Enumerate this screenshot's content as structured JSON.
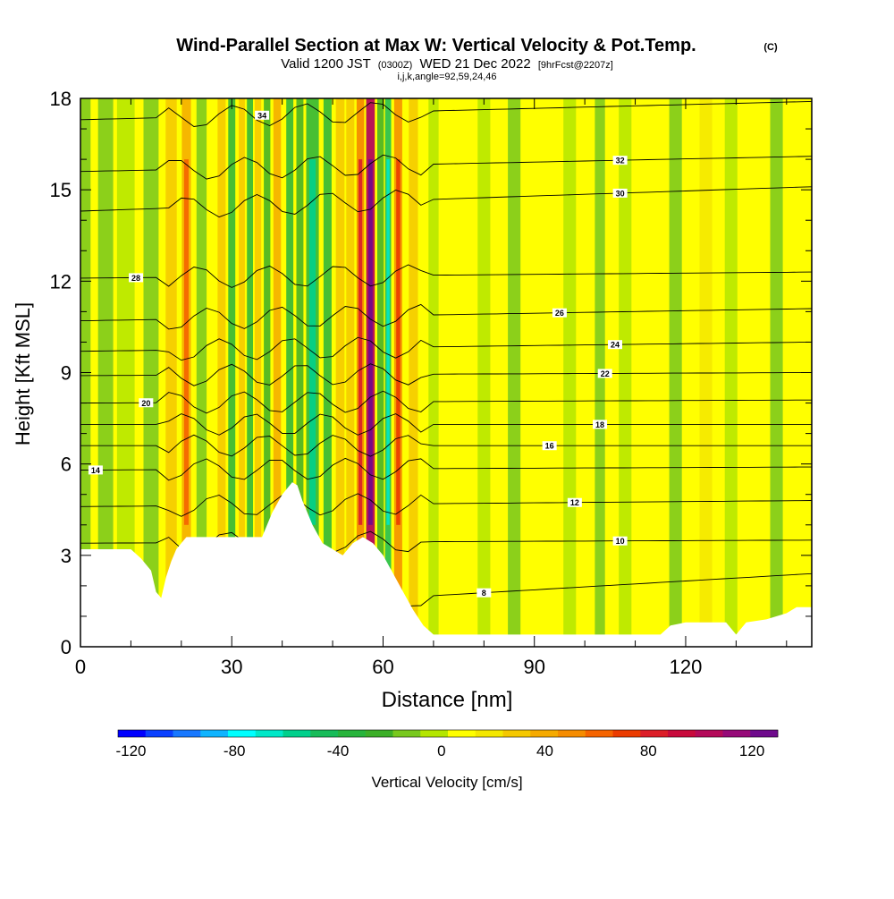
{
  "chart_data": {
    "type": "heatmap",
    "title": "Wind-Parallel Section at Max W: Vertical Velocity & Pot.Temp.",
    "title_mark": "(C)",
    "subtitle_main": "Valid 1200 JST",
    "subtitle_utc": "(0300Z)",
    "subtitle_date": "WED 21 Dec 2022",
    "subtitle_run": "[9hrFcst@2207z]",
    "subtitle_params": "i,j,k,angle=92,59,24,46",
    "xlabel": "Distance [nm]",
    "ylabel": "Height [Kft MSL]",
    "xlim": [
      0,
      145
    ],
    "ylim": [
      0,
      18
    ],
    "x_ticks": [
      "0",
      "30",
      "60",
      "90",
      "120"
    ],
    "y_ticks": [
      "0",
      "3",
      "6",
      "9",
      "12",
      "15",
      "18"
    ],
    "colorbar": {
      "label": "Vertical Velocity [cm/s]",
      "range": [
        -125,
        130
      ],
      "tick_labels": [
        "-120",
        "-80",
        "-40",
        "0",
        "40",
        "80",
        "120"
      ],
      "colors": [
        "#0000ff",
        "#0a40ff",
        "#1878ff",
        "#10b4ff",
        "#00ffff",
        "#00e8c8",
        "#00d08c",
        "#18bc5a",
        "#28b43c",
        "#3caf28",
        "#78c81e",
        "#b4e600",
        "#ffff00",
        "#f4e800",
        "#f5c800",
        "#f5aa00",
        "#f58c00",
        "#f56400",
        "#eb3c00",
        "#dc1e28",
        "#c80a3c",
        "#b40a5a",
        "#960a78",
        "#6e0a8c"
      ]
    },
    "terrain_top_kft": [
      [
        0,
        3.2
      ],
      [
        10,
        3.2
      ],
      [
        12,
        2.9
      ],
      [
        14,
        2.5
      ],
      [
        15,
        1.8
      ],
      [
        16,
        1.6
      ],
      [
        17,
        2.3
      ],
      [
        18,
        2.8
      ],
      [
        19,
        3.2
      ],
      [
        21,
        3.6
      ],
      [
        25,
        3.6
      ],
      [
        28,
        3.6
      ],
      [
        32,
        3.6
      ],
      [
        36,
        3.6
      ],
      [
        38,
        4.4
      ],
      [
        40,
        5.0
      ],
      [
        42,
        5.4
      ],
      [
        43,
        5.3
      ],
      [
        44,
        4.8
      ],
      [
        46,
        4.0
      ],
      [
        48,
        3.4
      ],
      [
        50,
        3.2
      ],
      [
        52,
        3.0
      ],
      [
        54,
        3.4
      ],
      [
        56,
        3.6
      ],
      [
        58,
        3.4
      ],
      [
        60,
        3.0
      ],
      [
        62,
        2.4
      ],
      [
        64,
        1.8
      ],
      [
        66,
        1.2
      ],
      [
        68,
        0.7
      ],
      [
        70,
        0.4
      ],
      [
        80,
        0.4
      ],
      [
        100,
        0.4
      ],
      [
        115,
        0.4
      ],
      [
        117,
        0.7
      ],
      [
        120,
        0.8
      ],
      [
        128,
        0.8
      ],
      [
        130,
        0.4
      ],
      [
        132,
        0.8
      ],
      [
        136,
        0.9
      ],
      [
        140,
        1.1
      ],
      [
        142,
        1.3
      ],
      [
        145,
        1.3
      ]
    ],
    "velocity_bands": [
      {
        "x": 1,
        "width": 2.0,
        "w": -10
      },
      {
        "x": 5,
        "width": 3.0,
        "w": -15
      },
      {
        "x": 9,
        "width": 3.5,
        "w": -5
      },
      {
        "x": 14,
        "width": 3.0,
        "w": -15
      },
      {
        "x": 18,
        "width": 2.2,
        "w": 25
      },
      {
        "x": 21,
        "width": 1.8,
        "w": 40
      },
      {
        "x": 24,
        "width": 2.0,
        "w": -10
      },
      {
        "x": 28,
        "width": 1.6,
        "w": 30
      },
      {
        "x": 30,
        "width": 1.4,
        "w": -30
      },
      {
        "x": 32,
        "width": 1.2,
        "w": 25
      },
      {
        "x": 33.6,
        "width": 1.2,
        "w": -35
      },
      {
        "x": 35.2,
        "width": 1.3,
        "w": 30
      },
      {
        "x": 37,
        "width": 1.3,
        "w": -25
      },
      {
        "x": 39,
        "width": 1.5,
        "w": 35
      },
      {
        "x": 41.5,
        "width": 1.4,
        "w": -30
      },
      {
        "x": 43.5,
        "width": 1.4,
        "w": -20
      },
      {
        "x": 46,
        "width": 2.5,
        "w": -40
      },
      {
        "x": 49,
        "width": 1.6,
        "w": -30
      },
      {
        "x": 51.5,
        "width": 1.7,
        "w": 30
      },
      {
        "x": 53.5,
        "width": 1.6,
        "w": 25
      },
      {
        "x": 55.5,
        "width": 1.5,
        "w": 55
      },
      {
        "x": 57.5,
        "width": 1.7,
        "w": 100
      },
      {
        "x": 59.5,
        "width": 1.3,
        "w": -25
      },
      {
        "x": 61,
        "width": 1.2,
        "w": -45
      },
      {
        "x": 63,
        "width": 1.6,
        "w": 45
      },
      {
        "x": 66,
        "width": 1.8,
        "w": 25
      },
      {
        "x": 70,
        "width": 2.0,
        "w": -5
      },
      {
        "x": 75,
        "width": 2.5,
        "w": 10
      },
      {
        "x": 80,
        "width": 2.5,
        "w": -5
      },
      {
        "x": 86,
        "width": 2.5,
        "w": -10
      },
      {
        "x": 92,
        "width": 2.5,
        "w": 10
      },
      {
        "x": 97,
        "width": 2.5,
        "w": -8
      },
      {
        "x": 103,
        "width": 2.0,
        "w": -10
      },
      {
        "x": 108,
        "width": 2.5,
        "w": -5
      },
      {
        "x": 112,
        "width": 2.5,
        "w": 12
      },
      {
        "x": 118,
        "width": 2.5,
        "w": -10
      },
      {
        "x": 124,
        "width": 2.5,
        "w": 15
      },
      {
        "x": 129,
        "width": 2.5,
        "w": -8
      },
      {
        "x": 133,
        "width": 2.5,
        "w": 10
      },
      {
        "x": 138,
        "width": 2.5,
        "w": -10
      },
      {
        "x": 143,
        "width": 2.0,
        "w": 5
      }
    ],
    "theta_contours": [
      {
        "value": 8,
        "y_left": 1.0,
        "y_right": 2.4,
        "label": "8",
        "label_x": 80
      },
      {
        "value": 10,
        "y_left": 3.4,
        "y_right": 3.5,
        "label": "10",
        "label_x": 107
      },
      {
        "value": 12,
        "y_left": 4.6,
        "y_right": 4.8,
        "label": "12",
        "label_x": 98
      },
      {
        "value": 14,
        "y_left": 5.8,
        "y_right": 5.9,
        "label": "14",
        "label_x": 3
      },
      {
        "value": 16,
        "y_left": 6.6,
        "y_right": 6.6,
        "label": "16",
        "label_x": 93
      },
      {
        "value": 18,
        "y_left": 7.3,
        "y_right": 7.3,
        "label": "18",
        "label_x": 103
      },
      {
        "value": 20,
        "y_left": 8.0,
        "y_right": 8.1,
        "label": "20",
        "label_x": 13
      },
      {
        "value": 22,
        "y_left": 8.9,
        "y_right": 9.0,
        "label": "22",
        "label_x": 104
      },
      {
        "value": 24,
        "y_left": 9.7,
        "y_right": 10.0,
        "label": "24",
        "label_x": 106
      },
      {
        "value": 26,
        "y_left": 10.7,
        "y_right": 11.1,
        "label": "26",
        "label_x": 95
      },
      {
        "value": 28,
        "y_left": 12.1,
        "y_right": 12.3,
        "label": "28",
        "label_x": 11
      },
      {
        "value": 30,
        "y_left": 14.3,
        "y_right": 15.1,
        "label": "30",
        "label_x": 107
      },
      {
        "value": 32,
        "y_left": 15.6,
        "y_right": 16.1,
        "label": "32",
        "label_x": 107
      },
      {
        "value": 34,
        "y_left": 17.3,
        "y_right": 17.9,
        "label": "34",
        "label_x": 36
      }
    ]
  }
}
